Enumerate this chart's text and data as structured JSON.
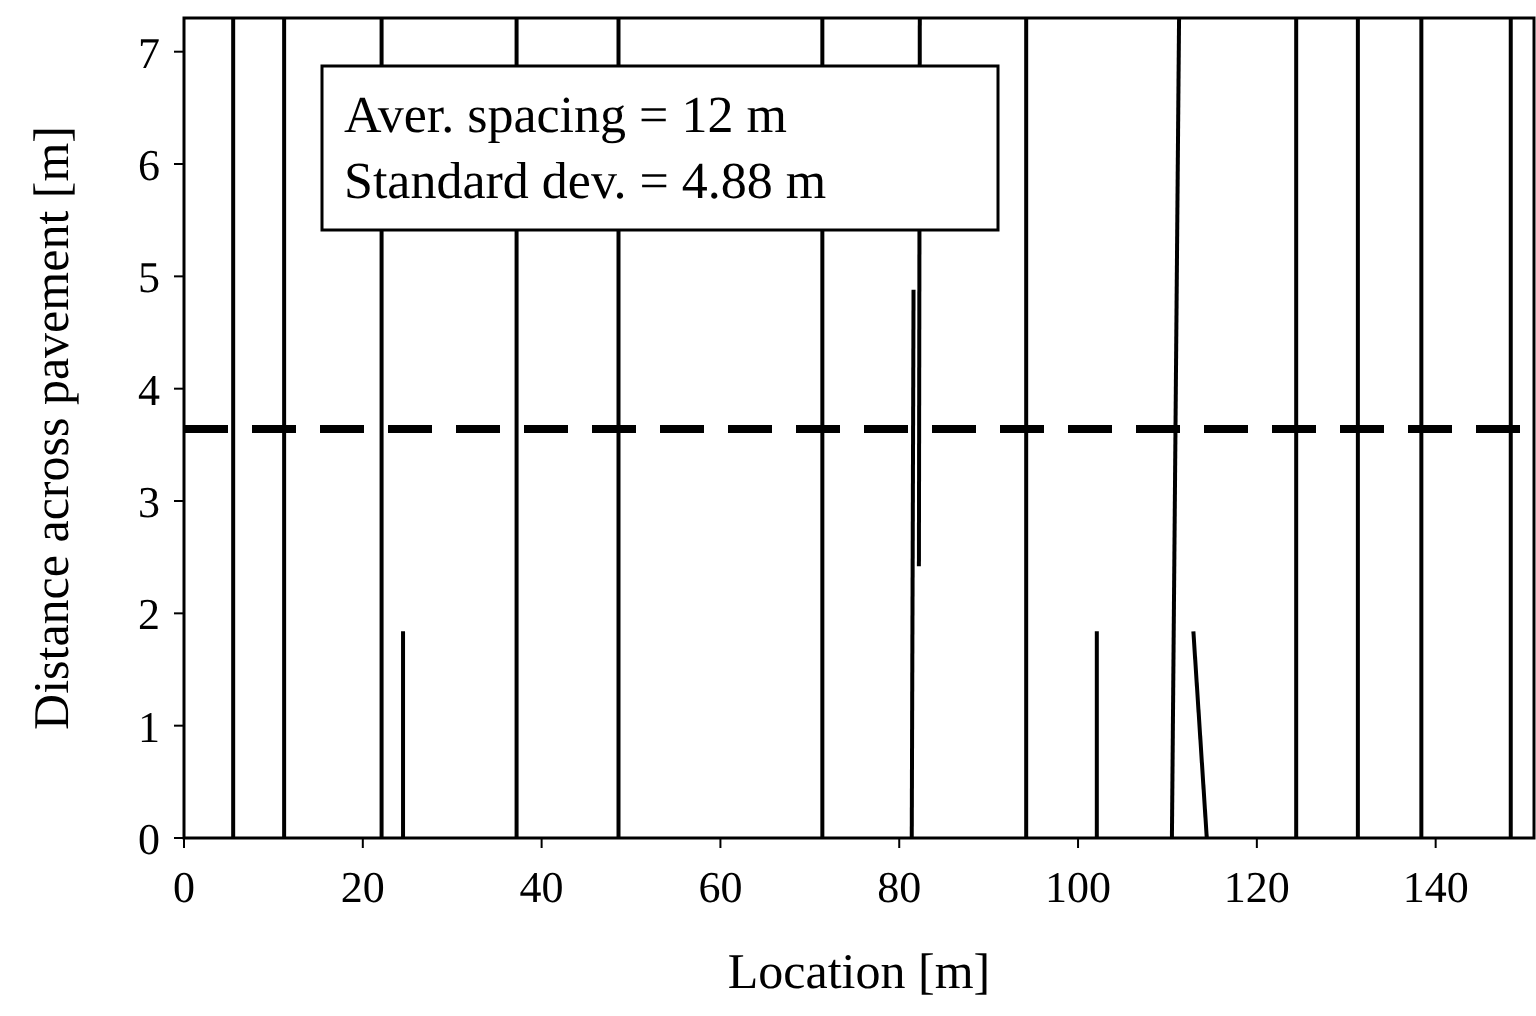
{
  "chart_data": {
    "type": "line",
    "xlabel": "Location [m]",
    "ylabel": "Distance across pavement [m]",
    "xlim": [
      0,
      151
    ],
    "xticks": [
      0,
      20,
      40,
      60,
      80,
      100,
      120,
      140
    ],
    "ylim": [
      0,
      7.3
    ],
    "yticks": [
      0,
      1,
      2,
      3,
      4,
      5,
      6,
      7
    ],
    "grid": false,
    "marker": "none",
    "line_style": "solid",
    "annotations": [
      "Aver. spacing = 12 m",
      "Standard dev. = 4.88 m"
    ],
    "ref_lines": [
      {
        "axis": "y",
        "value": 3.64,
        "color": "#000000",
        "line_style": "dashed"
      }
    ],
    "series": [
      {
        "color": "#000000",
        "x": [
          5.5,
          5.5
        ],
        "values": [
          0,
          7.3
        ]
      },
      {
        "color": "#000000",
        "x": [
          11.2,
          11.2
        ],
        "values": [
          0,
          7.3
        ]
      },
      {
        "color": "#000000",
        "x": [
          22.1,
          22.1
        ],
        "values": [
          0,
          7.3
        ]
      },
      {
        "color": "#000000",
        "x": [
          24.5,
          24.5
        ],
        "values": [
          0,
          1.84
        ]
      },
      {
        "color": "#000000",
        "x": [
          37.2,
          37.2
        ],
        "values": [
          0,
          7.3
        ]
      },
      {
        "color": "#000000",
        "x": [
          48.6,
          48.6
        ],
        "values": [
          0,
          7.3
        ]
      },
      {
        "color": "#000000",
        "x": [
          71.4,
          71.4
        ],
        "values": [
          0,
          7.3
        ]
      },
      {
        "color": "#000000",
        "x": [
          81.4,
          81.6
        ],
        "values": [
          0,
          4.88
        ]
      },
      {
        "color": "#000000",
        "x": [
          82.2,
          82.3
        ],
        "values": [
          2.42,
          7.3
        ]
      },
      {
        "color": "#000000",
        "x": [
          94.2,
          94.2
        ],
        "values": [
          0,
          7.3
        ]
      },
      {
        "color": "#000000",
        "x": [
          102.1,
          102.1
        ],
        "values": [
          0,
          1.84
        ]
      },
      {
        "color": "#000000",
        "x": [
          110.5,
          111.3
        ],
        "values": [
          0,
          7.3
        ]
      },
      {
        "color": "#000000",
        "x": [
          114.4,
          112.9
        ],
        "values": [
          0,
          1.84
        ]
      },
      {
        "color": "#000000",
        "x": [
          124.4,
          124.4
        ],
        "values": [
          0,
          7.3
        ]
      },
      {
        "color": "#000000",
        "x": [
          131.3,
          131.3
        ],
        "values": [
          0,
          7.3
        ]
      },
      {
        "color": "#000000",
        "x": [
          138.4,
          138.4
        ],
        "values": [
          0,
          7.3
        ]
      },
      {
        "color": "#000000",
        "x": [
          148.4,
          148.4
        ],
        "values": [
          0,
          7.3
        ]
      }
    ]
  }
}
